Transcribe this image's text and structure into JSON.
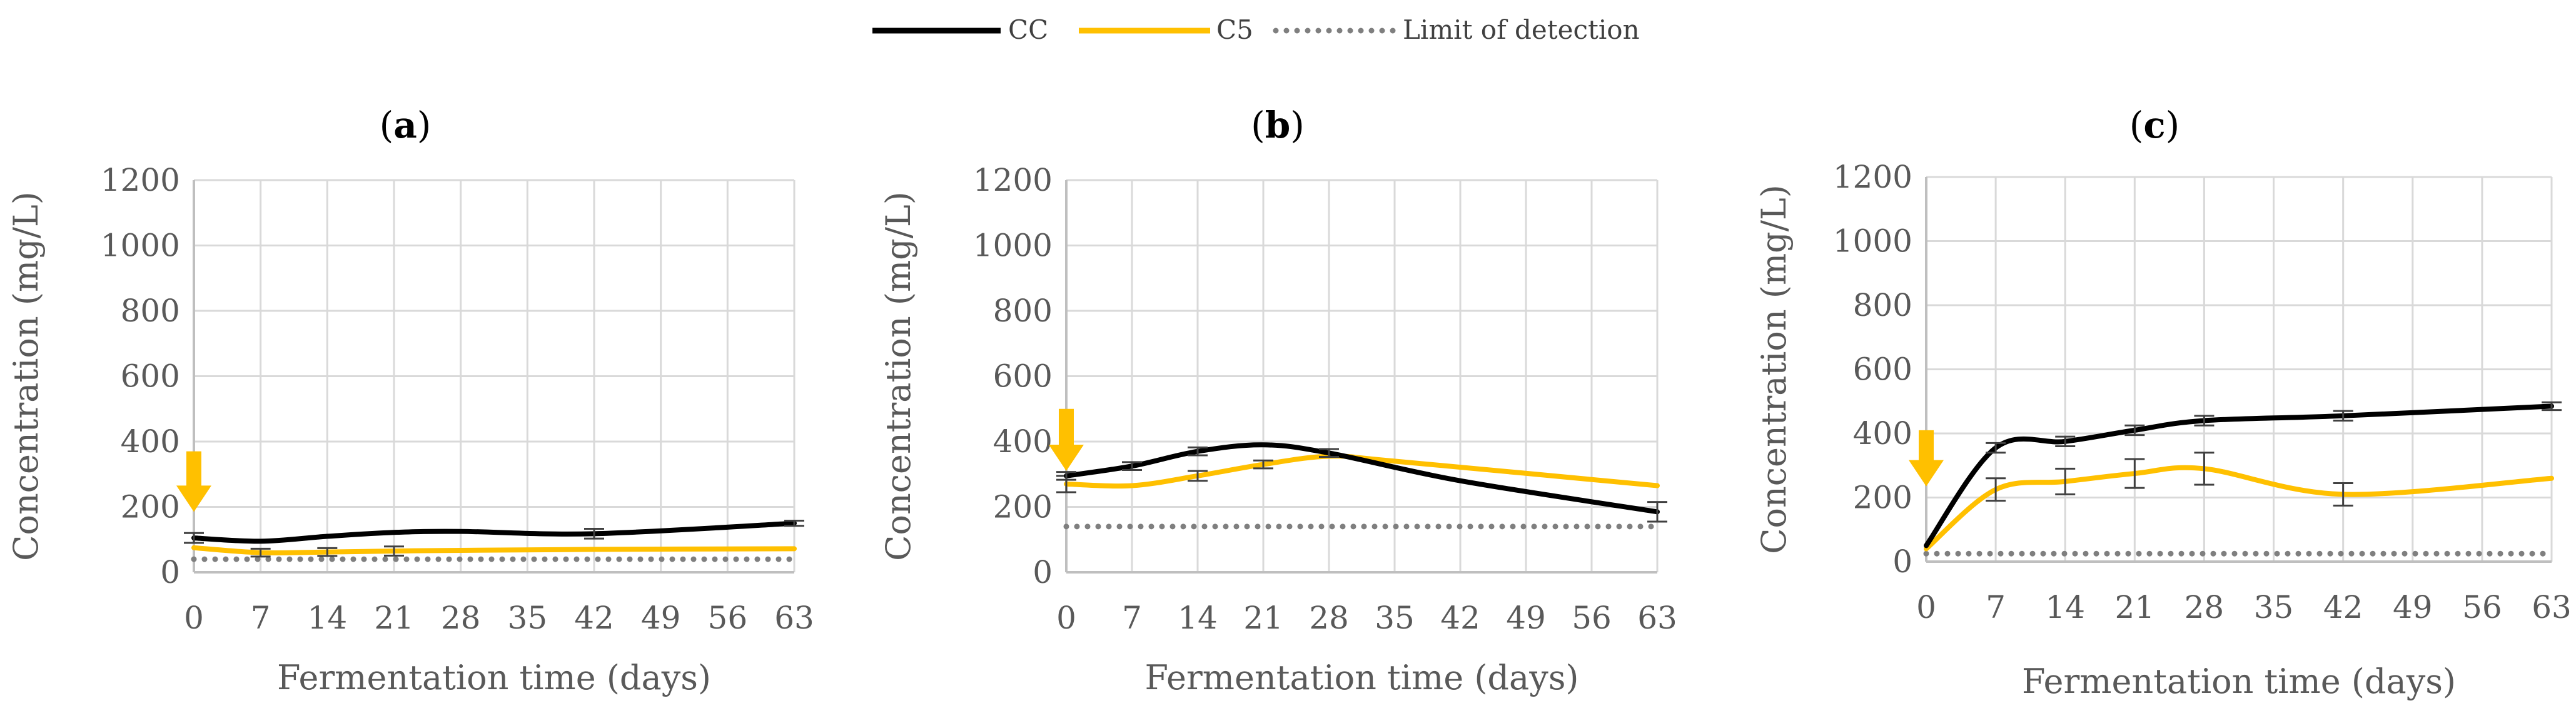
{
  "legend": {
    "placement": "top-center",
    "entries": [
      {
        "label": "CC",
        "color": "#000000",
        "style": "solid"
      },
      {
        "label": "C5",
        "color": "#FFC000",
        "style": "solid"
      },
      {
        "label": "Limit of detection",
        "color": "#7F7F7F",
        "style": "dotted"
      }
    ]
  },
  "marker_color": "#FFC000",
  "chart_data": [
    {
      "type": "line",
      "title": "(a)",
      "title_bold_part": "a",
      "xlabel": "Fermentation time (days)",
      "ylabel": "Concentration (mg/L)",
      "xlim": [
        0,
        63
      ],
      "ylim": [
        0,
        1200
      ],
      "xticks": [
        "0",
        "7",
        "14",
        "21",
        "28",
        "35",
        "42",
        "49",
        "56",
        "63"
      ],
      "yticks": [
        "0",
        "200",
        "400",
        "600",
        "800",
        "1000",
        "1200"
      ],
      "grid": true,
      "series": [
        {
          "name": "CC",
          "color": "#000000",
          "x": [
            0,
            7,
            14,
            21,
            28,
            42,
            63
          ],
          "y": [
            105,
            95,
            110,
            122,
            125,
            118,
            150
          ],
          "errors": [
            {
              "x": 0,
              "e": 15
            },
            {
              "x": 42,
              "e": 15
            },
            {
              "x": 63,
              "e": 8
            }
          ]
        },
        {
          "name": "C5",
          "color": "#FFC000",
          "x": [
            0,
            7,
            14,
            21,
            28,
            42,
            63
          ],
          "y": [
            75,
            60,
            62,
            65,
            67,
            70,
            72
          ],
          "errors": [
            {
              "x": 7,
              "e": 12
            },
            {
              "x": 14,
              "e": 12
            },
            {
              "x": 21,
              "e": 14
            }
          ]
        },
        {
          "name": "Limit of detection",
          "color": "#7F7F7F",
          "dotted": true,
          "x": [
            0,
            63
          ],
          "y": [
            40,
            40
          ]
        }
      ],
      "arrow": {
        "x": 0,
        "y_top": 370,
        "y_bottom": 185
      }
    },
    {
      "type": "line",
      "title": "(b)",
      "title_bold_part": "b",
      "xlabel": "Fermentation time (days)",
      "ylabel": "Concentration (mg/L)",
      "xlim": [
        0,
        63
      ],
      "ylim": [
        0,
        1200
      ],
      "xticks": [
        "0",
        "7",
        "14",
        "21",
        "28",
        "35",
        "42",
        "49",
        "56",
        "63"
      ],
      "yticks": [
        "0",
        "200",
        "400",
        "600",
        "800",
        "1000",
        "1200"
      ],
      "grid": true,
      "series": [
        {
          "name": "CC",
          "color": "#000000",
          "x": [
            0,
            7,
            14,
            21,
            28,
            42,
            63
          ],
          "y": [
            295,
            325,
            370,
            390,
            365,
            280,
            185
          ],
          "errors": [
            {
              "x": 0,
              "e": 12
            },
            {
              "x": 7,
              "e": 12
            },
            {
              "x": 14,
              "e": 12
            },
            {
              "x": 28,
              "e": 12
            },
            {
              "x": 63,
              "e": 30
            }
          ]
        },
        {
          "name": "C5",
          "color": "#FFC000",
          "x": [
            0,
            7,
            14,
            21,
            28,
            35,
            63
          ],
          "y": [
            270,
            265,
            295,
            330,
            355,
            340,
            265
          ],
          "errors": [
            {
              "x": 0,
              "e": 25
            },
            {
              "x": 14,
              "e": 15
            },
            {
              "x": 21,
              "e": 12
            }
          ]
        },
        {
          "name": "Limit of detection",
          "color": "#7F7F7F",
          "dotted": true,
          "x": [
            0,
            63
          ],
          "y": [
            140,
            140
          ]
        }
      ],
      "arrow": {
        "x": 0,
        "y_top": 500,
        "y_bottom": 310
      }
    },
    {
      "type": "line",
      "title": "(c)",
      "title_bold_part": "c",
      "xlabel": "Fermentation time (days)",
      "ylabel": "Concentration (mg/L)",
      "xlim": [
        0,
        63
      ],
      "ylim": [
        0,
        1200
      ],
      "xticks": [
        "0",
        "7",
        "14",
        "21",
        "28",
        "35",
        "42",
        "49",
        "56",
        "63"
      ],
      "yticks": [
        "0",
        "200",
        "400",
        "600",
        "800",
        "1000",
        "1200"
      ],
      "grid": true,
      "series": [
        {
          "name": "CC",
          "color": "#000000",
          "x": [
            0,
            7,
            14,
            21,
            28,
            42,
            63
          ],
          "y": [
            50,
            355,
            375,
            410,
            440,
            455,
            485
          ],
          "errors": [
            {
              "x": 7,
              "e": 15
            },
            {
              "x": 14,
              "e": 15
            },
            {
              "x": 21,
              "e": 15
            },
            {
              "x": 28,
              "e": 15
            },
            {
              "x": 42,
              "e": 15
            },
            {
              "x": 63,
              "e": 12
            }
          ]
        },
        {
          "name": "C5",
          "color": "#FFC000",
          "x": [
            0,
            7,
            14,
            21,
            28,
            42,
            63
          ],
          "y": [
            40,
            225,
            250,
            275,
            290,
            210,
            260
          ],
          "errors": [
            {
              "x": 7,
              "e": 35
            },
            {
              "x": 14,
              "e": 40
            },
            {
              "x": 21,
              "e": 45
            },
            {
              "x": 28,
              "e": 50
            },
            {
              "x": 42,
              "e": 35
            }
          ]
        },
        {
          "name": "Limit of detection",
          "color": "#7F7F7F",
          "dotted": true,
          "x": [
            0,
            63
          ],
          "y": [
            25,
            25
          ]
        }
      ],
      "arrow": {
        "x": 0,
        "y_top": 410,
        "y_bottom": 235
      }
    }
  ]
}
